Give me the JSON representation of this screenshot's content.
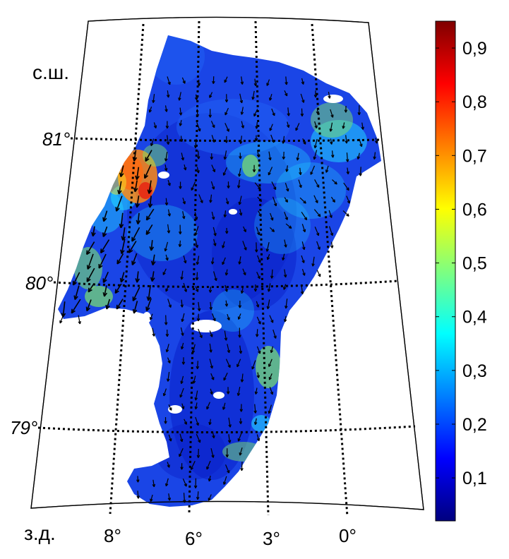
{
  "map": {
    "lat_unit_label": "с.ш.",
    "lon_unit_label": "з.д.",
    "lat_labels": [
      "81°",
      "80°",
      "79°"
    ],
    "lon_labels": [
      "8°",
      "6°",
      "3°",
      "0°"
    ],
    "data_colors": {
      "deep": "#0a1fc8",
      "mid": "#1f5ef2",
      "cyan": "#22d4ff",
      "green": "#7de36a",
      "yellow": "#f2ea2a",
      "orange": "#ff8a12",
      "red": "#e81e10"
    }
  },
  "colorbar": {
    "min": 0.02,
    "max": 0.95,
    "ticks": [
      "0,1",
      "0,2",
      "0,3",
      "0,4",
      "0,5",
      "0,6",
      "0,7",
      "0,8",
      "0,9"
    ],
    "tick_values": [
      0.1,
      0.2,
      0.3,
      0.4,
      0.5,
      0.6,
      0.7,
      0.8,
      0.9
    ],
    "colormap": "jet",
    "stops": [
      "#00007f",
      "#0000ff",
      "#007fff",
      "#00ffff",
      "#7fff7f",
      "#ffff00",
      "#ff7f00",
      "#ff0000",
      "#7f0000"
    ]
  }
}
